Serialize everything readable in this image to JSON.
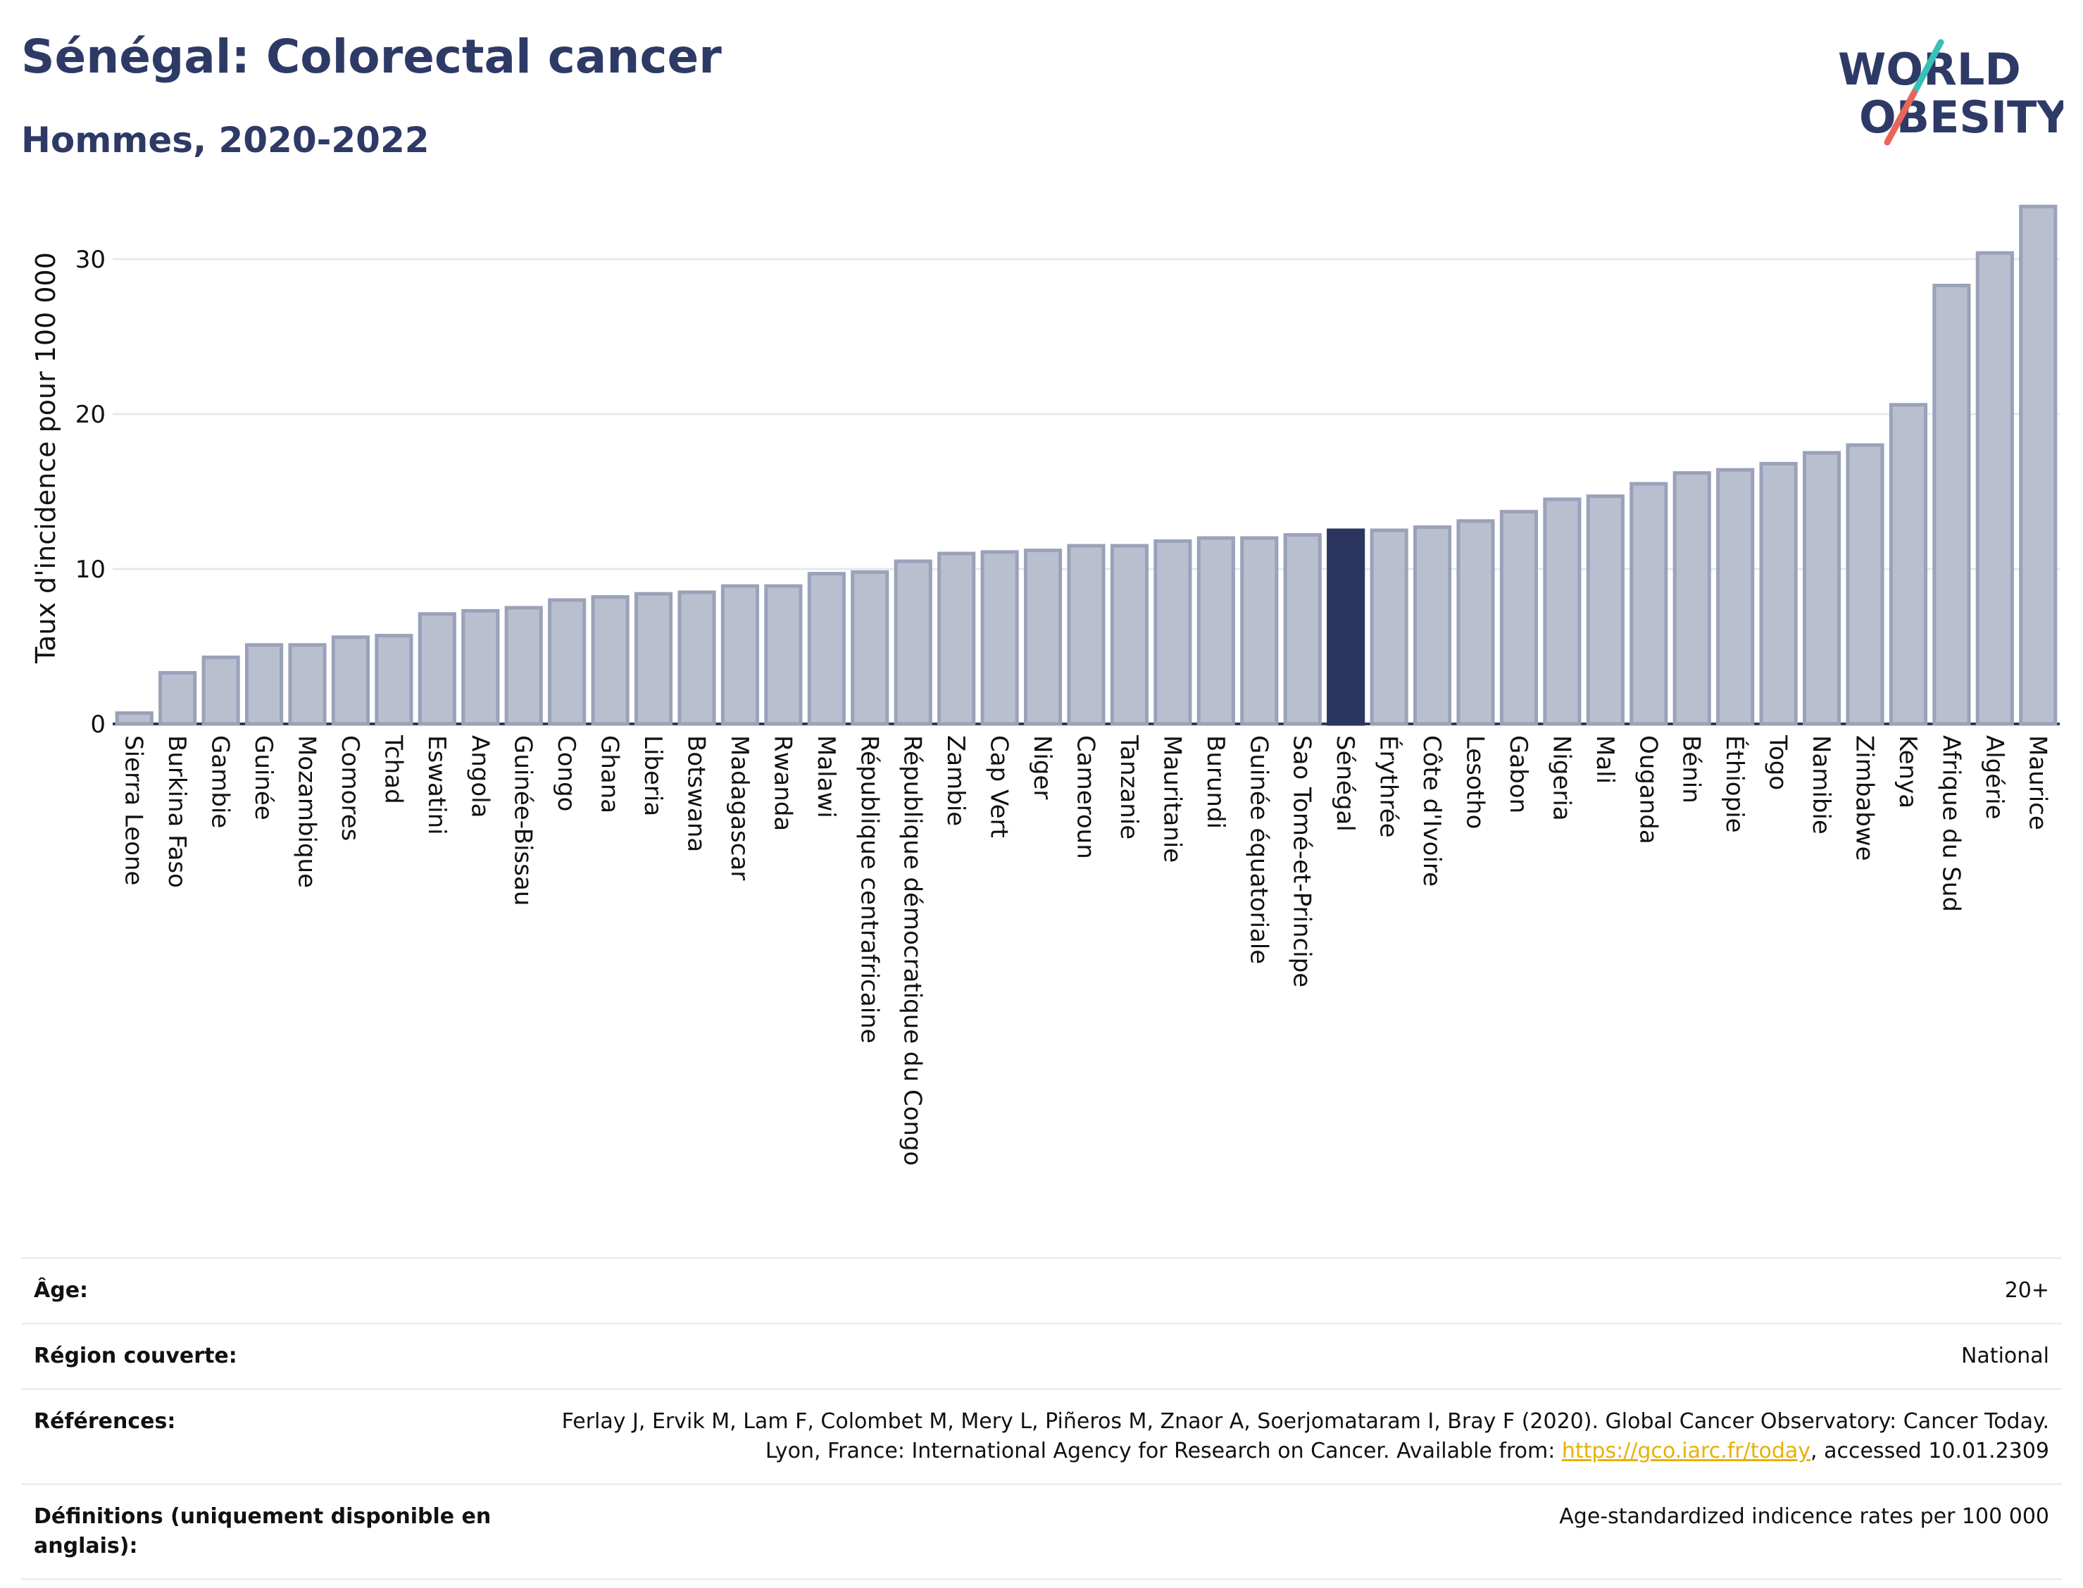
{
  "header": {
    "title": "Sénégal: Colorectal cancer",
    "subtitle": "Hommes, 2020-2022"
  },
  "logo": {
    "line1": "WORLD",
    "line2": "OBESITY",
    "colors": {
      "text": "#2e3a66",
      "slash_teal": "#39c0b8",
      "slash_red": "#e8655a"
    }
  },
  "colors": {
    "bar_fill": "#b9bfcf",
    "bar_stroke": "#9aa2ba",
    "highlight": "#2b3660",
    "grid": "#e6e8ef"
  },
  "chart_data": {
    "type": "bar",
    "ylabel": "Taux d'incidence pour 100 000",
    "xlabel": "",
    "ylim": [
      0,
      34
    ],
    "yticks": [
      0,
      10,
      20,
      30
    ],
    "grid": true,
    "highlight_category": "Sénégal",
    "categories": [
      "Sierra Leone",
      "Burkina Faso",
      "Gambie",
      "Guinée",
      "Mozambique",
      "Comores",
      "Tchad",
      "Eswatini",
      "Angola",
      "Guinée-Bissau",
      "Congo",
      "Ghana",
      "Liberia",
      "Botswana",
      "Madagascar",
      "Rwanda",
      "Malawi",
      "République centrafricaine",
      "République démocratique du Congo",
      "Zambie",
      "Cap Vert",
      "Niger",
      "Cameroun",
      "Tanzanie",
      "Mauritanie",
      "Burundi",
      "Guinée équatoriale",
      "Sao Tomé-et-Principe",
      "Sénégal",
      "Érythrée",
      "Côte d'Ivoire",
      "Lesotho",
      "Gabon",
      "Nigeria",
      "Mali",
      "Ouganda",
      "Bénin",
      "Éthiopie",
      "Togo",
      "Namibie",
      "Zimbabwe",
      "Kenya",
      "Afrique du Sud",
      "Algérie",
      "Maurice"
    ],
    "values": [
      0.7,
      3.3,
      4.3,
      5.1,
      5.1,
      5.6,
      5.7,
      7.1,
      7.3,
      7.5,
      8.0,
      8.2,
      8.4,
      8.5,
      8.9,
      8.9,
      9.7,
      9.8,
      10.5,
      11.0,
      11.1,
      11.2,
      11.5,
      11.5,
      11.8,
      12.0,
      12.0,
      12.2,
      12.5,
      12.5,
      12.7,
      13.1,
      13.7,
      14.5,
      14.7,
      15.5,
      16.2,
      16.4,
      16.8,
      17.5,
      18.0,
      20.6,
      28.3,
      30.4,
      33.4
    ]
  },
  "meta": {
    "rows": [
      {
        "label": "Âge:",
        "value": "20+"
      },
      {
        "label": "Région couverte:",
        "value": "National"
      },
      {
        "label": "Références:",
        "value_before": "Ferlay J, Ervik M, Lam F, Colombet M, Mery L, Piñeros M, Znaor A, Soerjomataram I, Bray F (2020). Global Cancer Observatory: Cancer Today. Lyon, France: International Agency for Research on Cancer. Available from: ",
        "link": "https://gco.iarc.fr/today",
        "value_after": ", accessed 10.01.2309"
      },
      {
        "label": "Définitions (uniquement disponible en anglais):",
        "value": "Age-standardized indicence rates per 100 000"
      }
    ]
  }
}
